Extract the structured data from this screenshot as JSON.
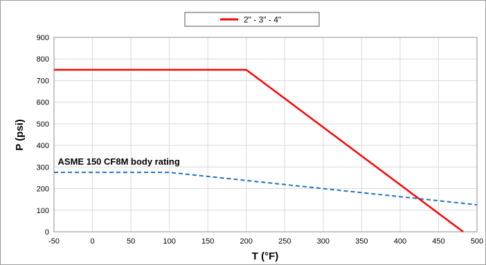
{
  "chart_data": {
    "type": "line",
    "xlabel": "T (°F)",
    "ylabel": "P (psi)",
    "xlim": [
      -50,
      500
    ],
    "ylim": [
      0,
      900
    ],
    "x_ticks": [
      -50,
      0,
      50,
      100,
      150,
      200,
      250,
      300,
      350,
      400,
      450,
      500
    ],
    "y_ticks": [
      0,
      100,
      200,
      300,
      400,
      500,
      600,
      700,
      800,
      900
    ],
    "grid": true,
    "legend_position": "top-center",
    "series": [
      {
        "name": "2\" - 3\" - 4\"",
        "color": "#ff0000",
        "style": "solid",
        "x": [
          -50,
          200,
          482
        ],
        "y": [
          750,
          750,
          0
        ]
      },
      {
        "name": "",
        "color": "#1f6fc0",
        "style": "dashed",
        "x": [
          -50,
          100,
          500
        ],
        "y": [
          275,
          275,
          125
        ]
      }
    ],
    "annotations": [
      {
        "text": "ASME 150 CF8M body rating",
        "x": -45,
        "y": 310
      }
    ]
  }
}
